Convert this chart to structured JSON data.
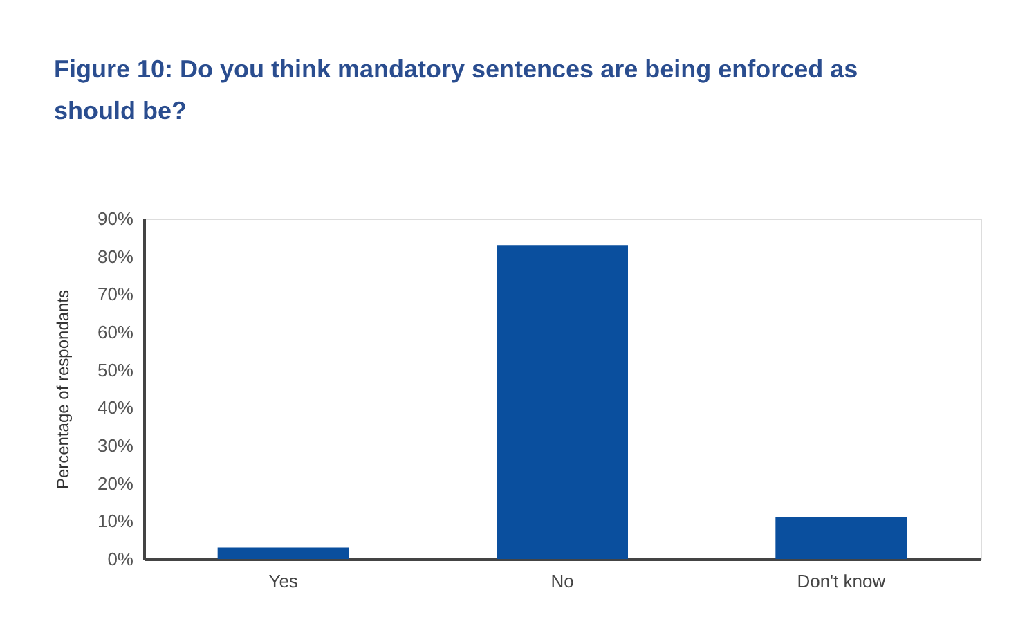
{
  "chart_data": {
    "type": "bar",
    "title": [
      "Figure 10: Do you think mandatory sentences are being enforced as",
      "should be?"
    ],
    "ylabel": "Percentage of respondants",
    "categories": [
      "Yes",
      "No",
      "Don't know"
    ],
    "values": [
      3,
      83,
      11
    ],
    "color": "#0a4f9e",
    "ylim": [
      0,
      90
    ],
    "yticks": [
      {
        "value": 0,
        "label": "0%"
      },
      {
        "value": 10,
        "label": "10%"
      },
      {
        "value": 20,
        "label": "20%"
      },
      {
        "value": 30,
        "label": "30%"
      },
      {
        "value": 40,
        "label": "40%"
      },
      {
        "value": 50,
        "label": "50%"
      },
      {
        "value": 60,
        "label": "60%"
      },
      {
        "value": 70,
        "label": "70%"
      },
      {
        "value": 80,
        "label": "80%"
      },
      {
        "value": 90,
        "label": "90%"
      }
    ],
    "grid": false
  }
}
